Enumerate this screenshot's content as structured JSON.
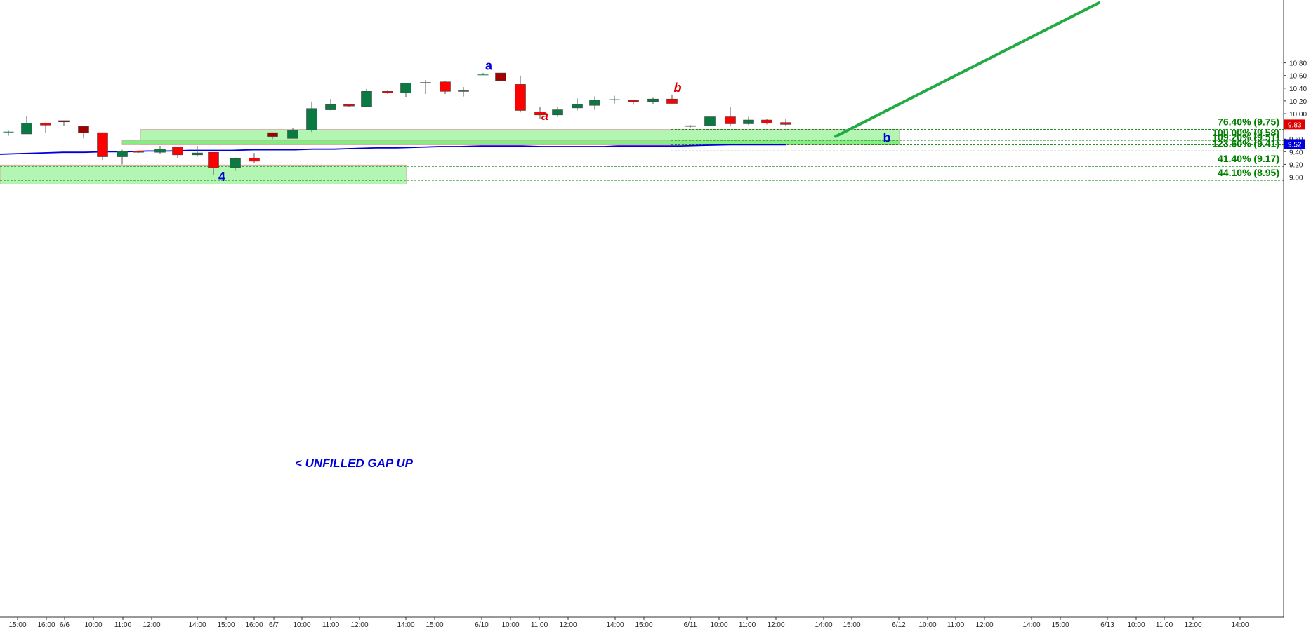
{
  "chart_data": {
    "type": "candlestick",
    "title": "",
    "xlabel": "",
    "ylabel": "",
    "ylim": [
      8.86,
      10.84
    ],
    "price_ticks": [
      "10.80",
      "10.60",
      "10.40",
      "10.20",
      "10.00",
      "9.80",
      "9.60",
      "9.40",
      "9.20",
      "9.00"
    ],
    "time_ticks": [
      "15:00",
      "16:00",
      "6/6",
      "10:00",
      "11:00",
      "12:00",
      "14:00",
      "15:00",
      "16:00",
      "6/7",
      "10:00",
      "11:00",
      "12:00",
      "14:00",
      "15:00",
      "6/10",
      "10:00",
      "11:00",
      "12:00",
      "14:00",
      "15:00",
      "6/11",
      "10:00",
      "11:00",
      "12:00",
      "14:00",
      "15:00",
      "6/12",
      "10:00",
      "11:00",
      "12:00",
      "14:00",
      "15:00",
      "6/13",
      "10:00",
      "11:00",
      "12:00",
      "14:00"
    ],
    "candles": [
      {
        "o": 9.71,
        "h": 9.73,
        "l": 9.65,
        "c": 9.71
      },
      {
        "o": 9.68,
        "h": 9.96,
        "l": 9.68,
        "c": 9.85
      },
      {
        "o": 9.85,
        "h": 9.86,
        "l": 9.69,
        "c": 9.82
      },
      {
        "o": 9.89,
        "h": 9.89,
        "l": 9.81,
        "c": 9.87
      },
      {
        "o": 9.8,
        "h": 9.8,
        "l": 9.61,
        "c": 9.7
      },
      {
        "o": 9.7,
        "h": 9.7,
        "l": 9.27,
        "c": 9.32
      },
      {
        "o": 9.32,
        "h": 9.43,
        "l": 9.2,
        "c": 9.41
      },
      {
        "o": 9.41,
        "h": 9.42,
        "l": 9.38,
        "c": 9.39
      },
      {
        "o": 9.39,
        "h": 9.49,
        "l": 9.36,
        "c": 9.44
      },
      {
        "o": 9.47,
        "h": 9.48,
        "l": 9.3,
        "c": 9.35
      },
      {
        "o": 9.35,
        "h": 9.49,
        "l": 9.32,
        "c": 9.38
      },
      {
        "o": 9.39,
        "h": 9.39,
        "l": 9.03,
        "c": 9.15
      },
      {
        "o": 9.15,
        "h": 9.31,
        "l": 9.1,
        "c": 9.29
      },
      {
        "o": 9.3,
        "h": 9.38,
        "l": 9.22,
        "c": 9.25
      },
      {
        "o": 9.7,
        "h": 9.7,
        "l": 9.6,
        "c": 9.64
      },
      {
        "o": 9.61,
        "h": 9.77,
        "l": 9.61,
        "c": 9.74
      },
      {
        "o": 9.74,
        "h": 10.19,
        "l": 9.71,
        "c": 10.08
      },
      {
        "o": 10.06,
        "h": 10.23,
        "l": 10.05,
        "c": 10.14
      },
      {
        "o": 10.14,
        "h": 10.14,
        "l": 10.1,
        "c": 10.12
      },
      {
        "o": 10.11,
        "h": 10.39,
        "l": 10.1,
        "c": 10.35
      },
      {
        "o": 10.35,
        "h": 10.36,
        "l": 10.31,
        "c": 10.33
      },
      {
        "o": 10.33,
        "h": 10.48,
        "l": 10.26,
        "c": 10.48
      },
      {
        "o": 10.48,
        "h": 10.53,
        "l": 10.31,
        "c": 10.49
      },
      {
        "o": 10.5,
        "h": 10.51,
        "l": 10.31,
        "c": 10.35
      },
      {
        "o": 10.35,
        "h": 10.42,
        "l": 10.27,
        "c": 10.36
      },
      {
        "o": 10.61,
        "h": 10.64,
        "l": 10.61,
        "c": 10.61
      },
      {
        "o": 10.64,
        "h": 10.64,
        "l": 10.52,
        "c": 10.52
      },
      {
        "o": 10.46,
        "h": 10.6,
        "l": 10.02,
        "c": 10.05
      },
      {
        "o": 10.03,
        "h": 10.11,
        "l": 9.92,
        "c": 9.98
      },
      {
        "o": 9.98,
        "h": 10.1,
        "l": 9.95,
        "c": 10.06
      },
      {
        "o": 10.09,
        "h": 10.24,
        "l": 10.05,
        "c": 10.15
      },
      {
        "o": 10.13,
        "h": 10.27,
        "l": 10.06,
        "c": 10.21
      },
      {
        "o": 10.22,
        "h": 10.28,
        "l": 10.16,
        "c": 10.22
      },
      {
        "o": 10.21,
        "h": 10.22,
        "l": 10.14,
        "c": 10.19
      },
      {
        "o": 10.19,
        "h": 10.25,
        "l": 10.15,
        "c": 10.23
      },
      {
        "o": 10.23,
        "h": 10.3,
        "l": 10.16,
        "c": 10.16
      },
      {
        "o": 9.81,
        "h": 9.82,
        "l": 9.78,
        "c": 9.8
      },
      {
        "o": 9.81,
        "h": 9.95,
        "l": 9.81,
        "c": 9.95
      },
      {
        "o": 9.95,
        "h": 10.1,
        "l": 9.8,
        "c": 9.84
      },
      {
        "o": 9.84,
        "h": 9.95,
        "l": 9.82,
        "c": 9.9
      },
      {
        "o": 9.9,
        "h": 9.92,
        "l": 9.83,
        "c": 9.85
      },
      {
        "o": 9.86,
        "h": 9.92,
        "l": 9.8,
        "c": 9.83
      }
    ],
    "moving_average": [
      9.36,
      9.37,
      9.38,
      9.39,
      9.39,
      9.4,
      9.4,
      9.41,
      9.41,
      9.42,
      9.42,
      9.42,
      9.43,
      9.43,
      9.43,
      9.44,
      9.44,
      9.45,
      9.46,
      9.46,
      9.47,
      9.48,
      9.48,
      9.49,
      9.49,
      9.49,
      9.48,
      9.48,
      9.48,
      9.48,
      9.49,
      9.49,
      9.49,
      9.49,
      9.5,
      9.51,
      9.51,
      9.51
    ],
    "fib_levels": [
      {
        "label": "76.40% (9.75)",
        "value": 9.75
      },
      {
        "label": "100.00% (9.58)",
        "value": 9.58
      },
      {
        "label": "109.20% (9.51)",
        "value": 9.51
      },
      {
        "label": "123.60% (9.41)",
        "value": 9.41
      },
      {
        "label": "41.40% (9.17)",
        "value": 9.17
      },
      {
        "label": "44.10% (8.95)",
        "value": 8.95
      }
    ],
    "zones": [
      {
        "name": "upper-support-zone",
        "y1": 9.75,
        "y2": 9.51
      },
      {
        "name": "inner-support-zone",
        "y1": 9.58,
        "y2": 9.51
      },
      {
        "name": "lower-support-zone",
        "y1": 9.19,
        "y2": 8.89
      }
    ],
    "projection": {
      "from_price": 9.64,
      "to_price": 10.84
    },
    "wave_labels": [
      {
        "text": "a",
        "color": "#0000dd",
        "italic": false,
        "price": 10.69
      },
      {
        "text": "b",
        "color": "#e00000",
        "italic": true,
        "price": 10.34
      },
      {
        "text": "a",
        "color": "#e00000",
        "italic": true,
        "price": 9.9
      },
      {
        "text": "b",
        "color": "#0000dd",
        "italic": false,
        "price": 9.55
      },
      {
        "text": "4",
        "color": "#0000dd",
        "italic": false,
        "price": 8.94
      }
    ],
    "annotation": "< UNFILLED GAP UP",
    "last_price": {
      "value": "9.83",
      "color": "#e00000"
    },
    "ma_price": {
      "value": "9.52",
      "color": "#0000dd"
    },
    "colors": {
      "up": "#0a7a42",
      "down": "#ff0000",
      "down_dark": "#a00000",
      "ma": "#0000dd",
      "fib": "#008000",
      "zone": "#b3f5b3",
      "zone_dark": "#80f080",
      "projection": "#22aa44"
    }
  }
}
